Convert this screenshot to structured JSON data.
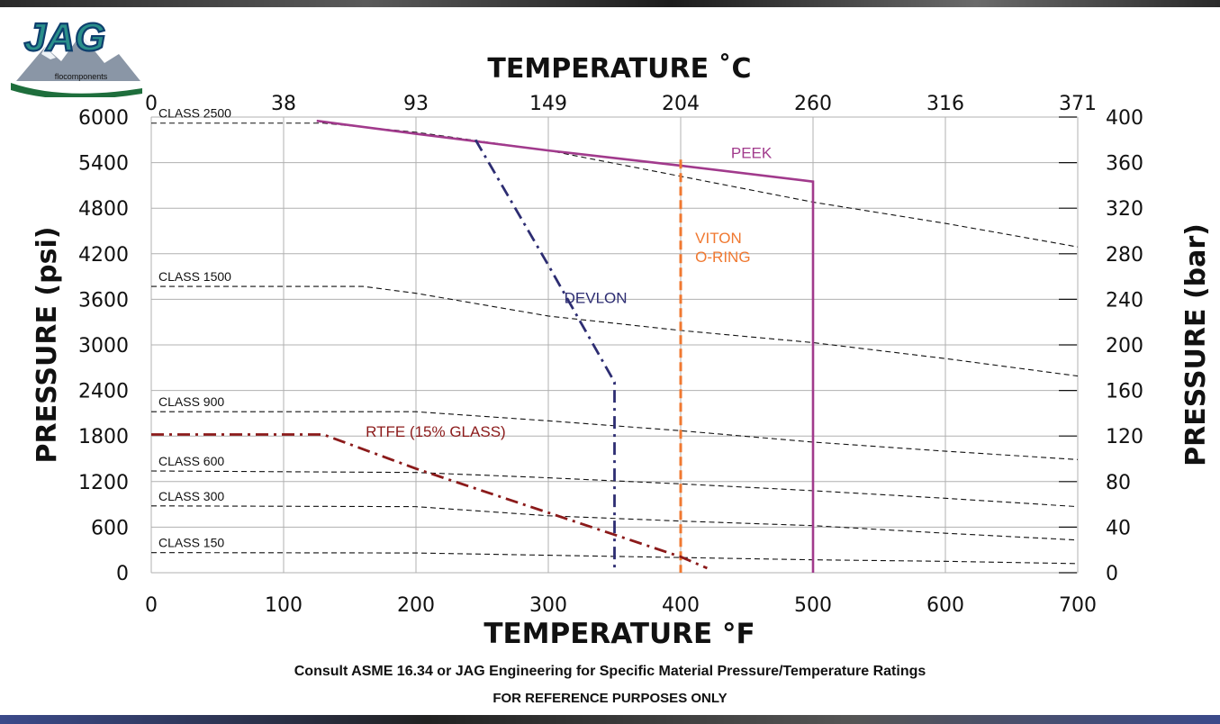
{
  "brand": {
    "logo_text": "JAG",
    "logo_subtext": "flocomponents"
  },
  "notes": {
    "line1": "Consult ASME 16.34 or JAG Engineering for Specific Material Pressure/Temperature Ratings",
    "line2": "FOR REFERENCE PURPOSES ONLY"
  },
  "chart_data": {
    "type": "line",
    "title": "",
    "xlabel": "TEMPERATURE °F",
    "x2label": "TEMPERATURE ˚C",
    "ylabel": "PRESSURE (psi)",
    "y2label": "PRESSURE (bar)",
    "xlim": [
      0,
      700
    ],
    "ylim": [
      0,
      6000
    ],
    "y2lim": [
      0,
      400
    ],
    "grid": true,
    "x_ticks": [
      0,
      100,
      200,
      300,
      400,
      500,
      600,
      700
    ],
    "y_ticks": [
      0,
      600,
      1200,
      1800,
      2400,
      3000,
      3600,
      4200,
      4800,
      5400,
      6000
    ],
    "x2_ticks": [
      {
        "label": "0",
        "at_f": 0
      },
      {
        "label": "38",
        "at_f": 100
      },
      {
        "label": "93",
        "at_f": 200
      },
      {
        "label": "149",
        "at_f": 300
      },
      {
        "label": "204",
        "at_f": 400
      },
      {
        "label": "260",
        "at_f": 500
      },
      {
        "label": "316",
        "at_f": 600
      },
      {
        "label": "371",
        "at_f": 700
      }
    ],
    "y2_ticks": [
      0,
      40,
      80,
      120,
      160,
      200,
      240,
      280,
      320,
      360,
      400
    ],
    "class_series": [
      {
        "name": "CLASS 2500",
        "points": [
          [
            0,
            5920
          ],
          [
            130,
            5920
          ],
          [
            200,
            5800
          ],
          [
            300,
            5560
          ],
          [
            400,
            5220
          ],
          [
            500,
            4880
          ],
          [
            600,
            4600
          ],
          [
            700,
            4290
          ]
        ]
      },
      {
        "name": "CLASS 1500",
        "points": [
          [
            0,
            3770
          ],
          [
            160,
            3770
          ],
          [
            200,
            3680
          ],
          [
            300,
            3380
          ],
          [
            400,
            3190
          ],
          [
            500,
            3030
          ],
          [
            600,
            2820
          ],
          [
            700,
            2590
          ]
        ]
      },
      {
        "name": "CLASS 900",
        "points": [
          [
            0,
            2120
          ],
          [
            200,
            2120
          ],
          [
            300,
            2000
          ],
          [
            400,
            1870
          ],
          [
            500,
            1720
          ],
          [
            600,
            1600
          ],
          [
            700,
            1490
          ]
        ]
      },
      {
        "name": "CLASS 600",
        "points": [
          [
            0,
            1340
          ],
          [
            200,
            1320
          ],
          [
            300,
            1250
          ],
          [
            400,
            1170
          ],
          [
            500,
            1080
          ],
          [
            600,
            980
          ],
          [
            700,
            870
          ]
        ]
      },
      {
        "name": "CLASS 300",
        "points": [
          [
            0,
            880
          ],
          [
            200,
            870
          ],
          [
            300,
            750
          ],
          [
            400,
            680
          ],
          [
            500,
            620
          ],
          [
            600,
            520
          ],
          [
            700,
            430
          ]
        ]
      },
      {
        "name": "CLASS 150",
        "points": [
          [
            0,
            265
          ],
          [
            200,
            260
          ],
          [
            300,
            230
          ],
          [
            400,
            200
          ],
          [
            500,
            170
          ],
          [
            600,
            150
          ],
          [
            700,
            120
          ]
        ]
      }
    ],
    "material_series": [
      {
        "name": "PEEK",
        "color": "#a13a8c",
        "style": "solid",
        "points": [
          [
            125,
            5950
          ],
          [
            200,
            5780
          ],
          [
            300,
            5560
          ],
          [
            400,
            5360
          ],
          [
            500,
            5150
          ],
          [
            500,
            0
          ]
        ]
      },
      {
        "name": "DEVLON",
        "color": "#2d2d72",
        "style": "dashdot",
        "points": [
          [
            245,
            5700
          ],
          [
            300,
            4050
          ],
          [
            350,
            2510
          ],
          [
            350,
            0
          ]
        ]
      },
      {
        "name": "VITON O-RING",
        "color": "#f07830",
        "style": "dashed",
        "points": [
          [
            400,
            5440
          ],
          [
            400,
            0
          ]
        ]
      },
      {
        "name": "RTFE (15% GLASS)",
        "color": "#8b1a1a",
        "style": "dashdot",
        "points": [
          [
            0,
            1820
          ],
          [
            130,
            1820
          ],
          [
            200,
            1370
          ],
          [
            300,
            790
          ],
          [
            400,
            210
          ],
          [
            420,
            60
          ]
        ]
      }
    ],
    "material_labels": {
      "peek": "PEEK",
      "devlon": "DEVLON",
      "viton_line1": "VITON",
      "viton_line2": "O-RING",
      "rtfe": "RTFE (15% GLASS)"
    }
  }
}
